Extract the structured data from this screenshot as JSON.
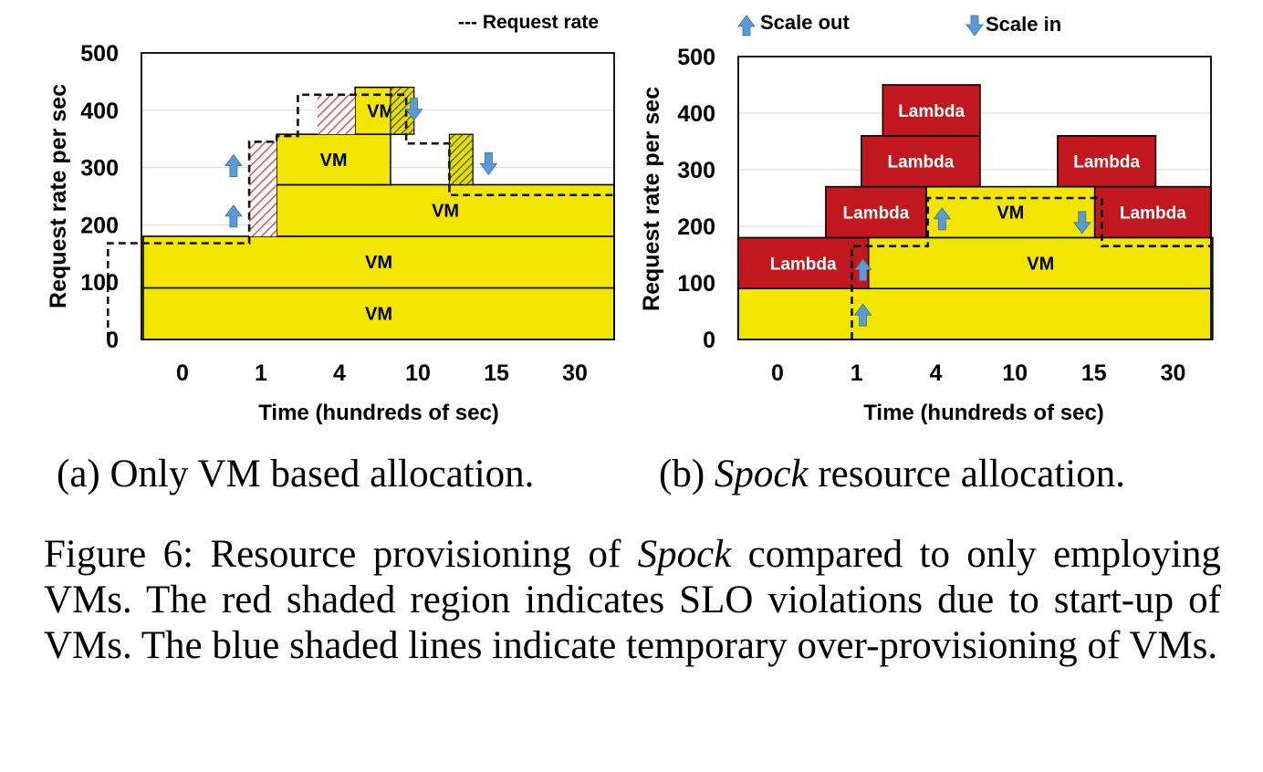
{
  "legend": {
    "request_rate_label": "--- Request rate",
    "scale_out_label": "Scale out",
    "scale_in_label": "Scale in"
  },
  "colors": {
    "vm_fill": "#f2e600",
    "lambda_fill": "#c0181e",
    "arrow_fill": "#5b9bd5",
    "hatch_red": "#e05050",
    "hatch_dark": "#3a5a40"
  },
  "chart_data": [
    {
      "id": "a",
      "type": "bar",
      "title": "(a) Only VM based allocation.",
      "xlabel": "Time (hundreds of sec)",
      "ylabel": "Request rate per sec",
      "categories": [
        "0",
        "1",
        "4",
        "10",
        "15",
        "30"
      ],
      "yticks": [
        "0",
        "100",
        "200",
        "300",
        "400",
        "500"
      ],
      "ylim": [
        0,
        500
      ],
      "allocations": [
        {
          "kind": "VM",
          "label": "VM",
          "time_start": -0.5,
          "time_end": 5.5,
          "y0": 0,
          "y1": 90
        },
        {
          "kind": "VM",
          "label": "VM",
          "time_start": -0.5,
          "time_end": 5.5,
          "y0": 90,
          "y1": 180
        },
        {
          "kind": "VM",
          "label": "VM",
          "time_start": 1.2,
          "time_end": 5.5,
          "y0": 180,
          "y1": 270
        },
        {
          "kind": "VM",
          "label": "VM",
          "time_start": 1.2,
          "time_end": 2.65,
          "y0": 270,
          "y1": 358
        },
        {
          "kind": "VM",
          "label": "VM",
          "time_start": 2.2,
          "time_end": 2.85,
          "y0": 358,
          "y1": 440
        }
      ],
      "slo_violation_regions": [
        {
          "time_start": 0.85,
          "time_end": 1.2,
          "y0": 180,
          "y1": 345
        },
        {
          "time_start": 1.72,
          "time_end": 2.2,
          "y0": 358,
          "y1": 427
        }
      ],
      "over_provision_regions": [
        {
          "time_start": 2.65,
          "time_end": 2.95,
          "y0": 358,
          "y1": 440
        },
        {
          "time_start": 3.4,
          "time_end": 3.7,
          "y0": 270,
          "y1": 358
        }
      ],
      "request_rate": [
        [
          -0.95,
          0
        ],
        [
          -0.95,
          168
        ],
        [
          0.85,
          168
        ],
        [
          0.85,
          345
        ],
        [
          1.2,
          345
        ],
        [
          1.2,
          355
        ],
        [
          1.47,
          355
        ],
        [
          1.47,
          427
        ],
        [
          2.85,
          427
        ],
        [
          2.85,
          342
        ],
        [
          3.4,
          342
        ],
        [
          3.4,
          252
        ],
        [
          5.5,
          252
        ]
      ],
      "scale_out_arrows": [
        [
          0.65,
          212
        ],
        [
          0.65,
          300
        ]
      ],
      "scale_in_arrows": [
        [
          2.95,
          405
        ],
        [
          3.9,
          310
        ]
      ]
    },
    {
      "id": "b",
      "type": "bar",
      "title": "(b) Spock resource allocation.",
      "xlabel": "Time (hundreds of sec)",
      "ylabel": "Request rate per sec",
      "categories": [
        "0",
        "1",
        "4",
        "10",
        "15",
        "30"
      ],
      "yticks": [
        "0",
        "100",
        "200",
        "300",
        "400",
        "500"
      ],
      "ylim": [
        0,
        500
      ],
      "allocations": [
        {
          "kind": "VM",
          "label": "",
          "time_start": -0.5,
          "time_end": 5.5,
          "y0": 0,
          "y1": 90
        },
        {
          "kind": "VM",
          "label": "VM",
          "time_start": 1.15,
          "time_end": 5.5,
          "y0": 90,
          "y1": 180
        },
        {
          "kind": "VM",
          "label": "VM",
          "time_start": 1.88,
          "time_end": 4.01,
          "y0": 180,
          "y1": 270
        },
        {
          "kind": "Lambda",
          "label": "Lambda",
          "time_start": -0.5,
          "time_end": 1.15,
          "y0": 90,
          "y1": 180
        },
        {
          "kind": "Lambda",
          "label": "Lambda",
          "time_start": 0.61,
          "time_end": 1.88,
          "y0": 180,
          "y1": 270
        },
        {
          "kind": "Lambda",
          "label": "Lambda",
          "time_start": 4.01,
          "time_end": 5.48,
          "y0": 180,
          "y1": 270
        },
        {
          "kind": "Lambda",
          "label": "Lambda",
          "time_start": 1.06,
          "time_end": 2.56,
          "y0": 270,
          "y1": 360
        },
        {
          "kind": "Lambda",
          "label": "Lambda",
          "time_start": 3.54,
          "time_end": 4.78,
          "y0": 270,
          "y1": 360
        },
        {
          "kind": "Lambda",
          "label": "Lambda",
          "time_start": 1.33,
          "time_end": 2.56,
          "y0": 360,
          "y1": 450
        }
      ],
      "slo_violation_regions": [],
      "over_provision_regions": [],
      "request_rate": [
        [
          0.94,
          0
        ],
        [
          0.94,
          165
        ],
        [
          1.9,
          165
        ],
        [
          1.9,
          250
        ],
        [
          4.1,
          250
        ],
        [
          4.1,
          165
        ],
        [
          5.5,
          165
        ]
      ],
      "scale_out_arrows": [
        [
          1.08,
          40
        ],
        [
          1.08,
          120
        ],
        [
          2.08,
          210
        ]
      ],
      "scale_in_arrows": [
        [
          3.85,
          210
        ]
      ]
    }
  ],
  "captions": {
    "a": "(a) Only VM based allocation.",
    "b_prefix": "(b) ",
    "b_em": "Spock",
    "b_suffix": " resource allocation.",
    "figure_prefix": "Figure 6: Resource provisioning of ",
    "figure_em": "Spock",
    "figure_suffix": " compared to only employing VMs. The red shaded region indicates SLO violations due to start-up of VMs. The blue shaded lines indicate temporary over-provisioning of VMs."
  }
}
